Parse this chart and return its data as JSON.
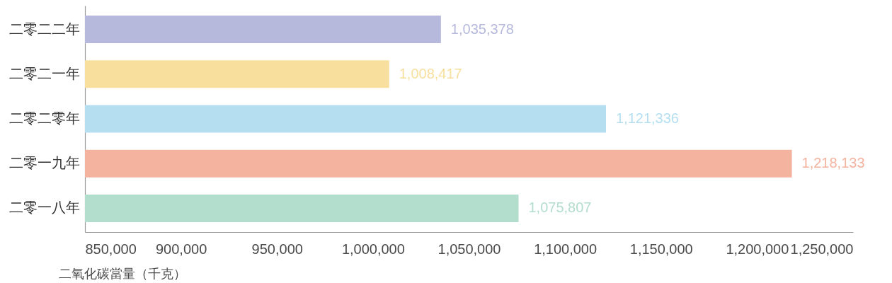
{
  "chart_data": {
    "type": "bar",
    "orientation": "horizontal",
    "categories": [
      "二零二二年",
      "二零二一年",
      "二零二零年",
      "二零一九年",
      "二零一八年"
    ],
    "values": [
      1035378,
      1008417,
      1121336,
      1218133,
      1075807
    ],
    "value_labels": [
      "1,035,378",
      "1,008,417",
      "1,121,336",
      "1,218,133",
      "1,075,807"
    ],
    "colors": [
      "#b6b9dc",
      "#f8df9e",
      "#b5dff0",
      "#f3b39f",
      "#b3ddcd"
    ],
    "xlim": [
      850000,
      1250000
    ],
    "xticks": [
      {
        "value": 850000,
        "label": "850,000"
      },
      {
        "value": 900000,
        "label": "900,000"
      },
      {
        "value": 950000,
        "label": "950,000"
      },
      {
        "value": 1000000,
        "label": "1,000,000"
      },
      {
        "value": 1050000,
        "label": "1,050,000"
      },
      {
        "value": 1100000,
        "label": "1,100,000"
      },
      {
        "value": 1150000,
        "label": "1,150,000"
      },
      {
        "value": 1200000,
        "label": "1,200,000"
      },
      {
        "value": 1250000,
        "label": "1,250,000"
      }
    ],
    "xlabel": "二氧化碳當量（千克）"
  }
}
